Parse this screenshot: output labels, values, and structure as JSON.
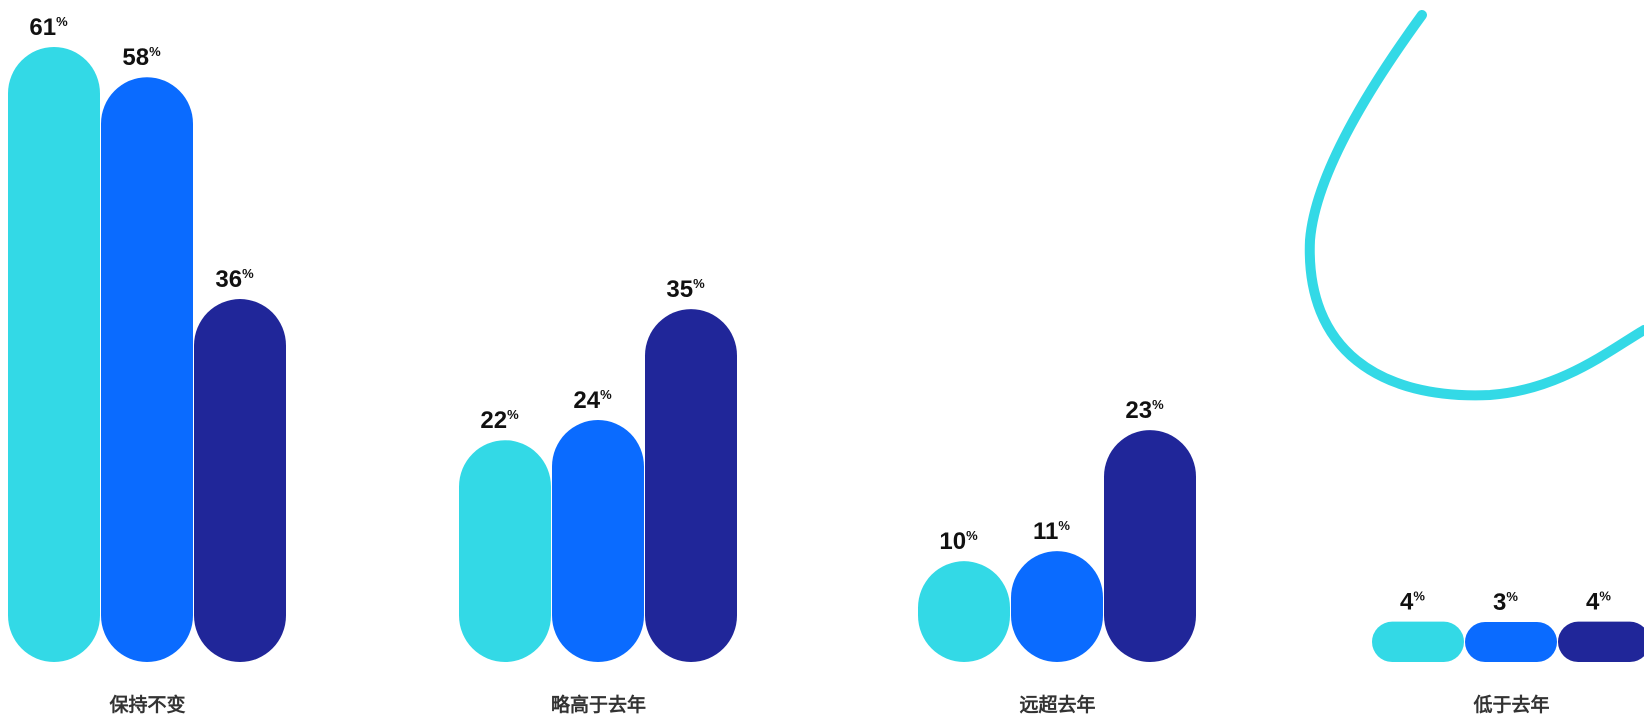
{
  "chart_data": {
    "type": "bar",
    "categories": [
      "保持不变",
      "略高于去年",
      "远超去年",
      "低于去年"
    ],
    "series": [
      {
        "values": [
          61,
          22,
          10,
          4
        ],
        "color": "#33D9E6"
      },
      {
        "values": [
          58,
          24,
          11,
          3
        ],
        "color": "#0A6BFF"
      },
      {
        "values": [
          36,
          35,
          23,
          4
        ],
        "color": "#202699"
      }
    ],
    "value_suffix": "%",
    "ylim": [
      0,
      61
    ],
    "grid": false,
    "legend": "none"
  },
  "decoration": {
    "swirl_color": "#33D9E6"
  }
}
